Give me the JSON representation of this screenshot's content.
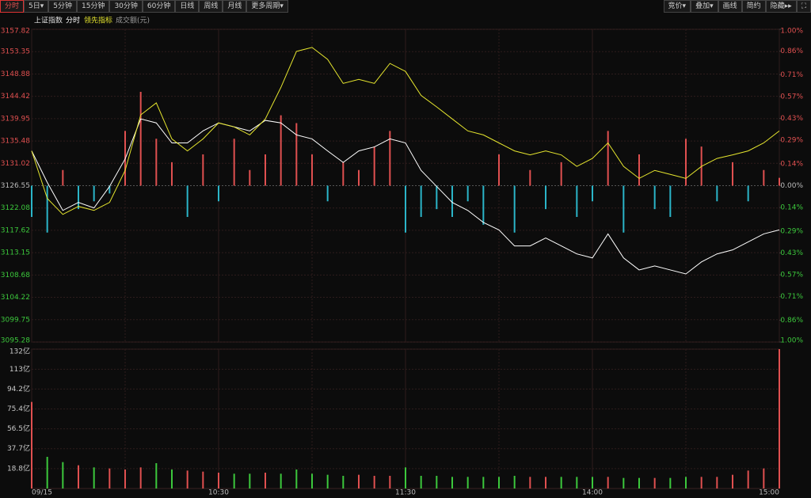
{
  "toolbar": {
    "left": [
      "分时",
      "5日▾",
      "5分钟",
      "15分钟",
      "30分钟",
      "60分钟",
      "日线",
      "周线",
      "月线",
      "更多周期▾"
    ],
    "right": [
      "竞价▾",
      "叠加▾",
      "画线",
      "简约",
      "隐藏▸▸"
    ]
  },
  "chart_data": [
    {
      "type": "line",
      "legend_title": "上证指数",
      "ylim": [
        3095.28,
        3157.82
      ],
      "yticks": [
        3157.82,
        3153.35,
        3148.88,
        3144.42,
        3139.95,
        3135.48,
        3131.02,
        3126.55,
        3122.08,
        3117.62,
        3113.15,
        3108.68,
        3104.22,
        3099.75,
        3095.28
      ],
      "y2lim": [
        -1,
        1
      ],
      "y2ticks": [
        {
          "value": 1,
          "label": "1.00%"
        },
        {
          "value": 0.86,
          "label": "0.86%"
        },
        {
          "value": 0.71,
          "label": "0.71%"
        },
        {
          "value": 0.57,
          "label": "0.57%"
        },
        {
          "value": 0.43,
          "label": "0.43%"
        },
        {
          "value": 0.29,
          "label": "0.29%"
        },
        {
          "value": 0.14,
          "label": "0.14%"
        },
        {
          "value": 0,
          "label": "0.00%"
        },
        {
          "value": -0.14,
          "label": "0.14%"
        },
        {
          "value": -0.29,
          "label": "0.29%"
        },
        {
          "value": -0.43,
          "label": "0.43%"
        },
        {
          "value": -0.57,
          "label": "0.57%"
        },
        {
          "value": -0.71,
          "label": "0.71%"
        },
        {
          "value": -0.86,
          "label": "0.86%"
        },
        {
          "value": -1,
          "label": "1.00%"
        }
      ],
      "up_color": "#e05050",
      "down_color": "#3cc83c",
      "grid": true,
      "series": [
        {
          "name": "分时",
          "color": "#ffffff",
          "values": [
            3133.5,
            3127.2,
            3121.6,
            3123.2,
            3122.1,
            3126.4,
            3131.9,
            3139.9,
            3139.1,
            3135.1,
            3135.1,
            3137.5,
            3139.1,
            3138.3,
            3137.5,
            3139.6,
            3139.1,
            3136.7,
            3135.9,
            3133.5,
            3131.2,
            3133.5,
            3134.3,
            3135.9,
            3135.1,
            3129.6,
            3126.4,
            3123.2,
            3121.6,
            3119.2,
            3117.7,
            3114.5,
            3114.5,
            3116.1,
            3114.5,
            3112.9,
            3112.1,
            3116.9,
            3112.1,
            3109.7,
            3110.5,
            3109.7,
            3108.9,
            3111.3,
            3112.9,
            3113.7,
            3115.3,
            3116.9,
            3117.7
          ]
        },
        {
          "name": "领先指标",
          "color": "#e6e62e",
          "values": [
            3133.5,
            3124.0,
            3120.8,
            3122.4,
            3121.6,
            3123.2,
            3129.6,
            3140.7,
            3143.1,
            3135.9,
            3133.5,
            3135.9,
            3139.1,
            3138.3,
            3136.7,
            3139.9,
            3146.2,
            3153.4,
            3154.2,
            3151.8,
            3147.0,
            3147.8,
            3147.0,
            3151.0,
            3149.4,
            3144.6,
            3142.3,
            3139.9,
            3137.5,
            3136.7,
            3135.1,
            3133.5,
            3132.7,
            3133.5,
            3132.7,
            3130.4,
            3132.0,
            3135.1,
            3130.4,
            3128.0,
            3129.6,
            3128.8,
            3128.0,
            3130.4,
            3132.0,
            3132.7,
            3133.5,
            3135.1,
            3137.5
          ]
        }
      ],
      "bars": {
        "axis": "y2",
        "up_color": "#e05050",
        "down_color": "#2bb5c8",
        "values": [
          -0.2,
          -0.3,
          0.1,
          -0.15,
          -0.1,
          -0.05,
          0.35,
          0.6,
          0.3,
          0.15,
          -0.2,
          0.2,
          -0.1,
          0.3,
          0.1,
          0.2,
          0.45,
          0.4,
          0.2,
          -0.1,
          0.15,
          0.1,
          0.25,
          0.35,
          -0.3,
          -0.2,
          -0.15,
          -0.2,
          -0.1,
          -0.25,
          0.2,
          -0.3,
          0.1,
          -0.15,
          0.15,
          -0.2,
          -0.1,
          0.35,
          -0.3,
          0.2,
          -0.15,
          -0.2,
          0.3,
          0.25,
          -0.1,
          0.15,
          -0.1,
          0.1,
          0.05
        ]
      }
    },
    {
      "type": "bar",
      "subtitle": "成交额(元)",
      "categories": [
        "09/15",
        null,
        null,
        null,
        null,
        null,
        null,
        null,
        null,
        null,
        null,
        null,
        "10:30",
        null,
        null,
        null,
        null,
        null,
        null,
        null,
        null,
        null,
        null,
        null,
        "11:30",
        null,
        null,
        null,
        null,
        null,
        null,
        null,
        null,
        null,
        null,
        null,
        "14:00",
        null,
        null,
        null,
        null,
        null,
        null,
        null,
        null,
        null,
        null,
        null,
        "15:00"
      ],
      "ylim": [
        0,
        132
      ],
      "yticks": [
        {
          "value": 132,
          "label": "132亿"
        },
        {
          "value": 113,
          "label": "113亿"
        },
        {
          "value": 94.2,
          "label": "94.2亿"
        },
        {
          "value": 75.4,
          "label": "75.4亿"
        },
        {
          "value": 56.5,
          "label": "56.5亿"
        },
        {
          "value": 37.7,
          "label": "37.7亿"
        },
        {
          "value": 18.8,
          "label": "18.8亿"
        }
      ],
      "up_color": "#e05050",
      "down_color": "#3cc83c",
      "grid": true,
      "values": [
        82,
        30,
        25,
        22,
        20,
        19,
        18,
        20,
        24,
        18,
        17,
        16,
        15,
        14,
        14,
        15,
        14,
        18,
        14,
        13,
        12,
        13,
        12,
        12,
        20,
        12,
        12,
        11,
        11,
        11,
        11,
        12,
        11,
        11,
        11,
        11,
        11,
        11,
        10,
        10,
        10,
        10,
        11,
        11,
        11,
        13,
        17,
        19,
        132
      ]
    }
  ]
}
